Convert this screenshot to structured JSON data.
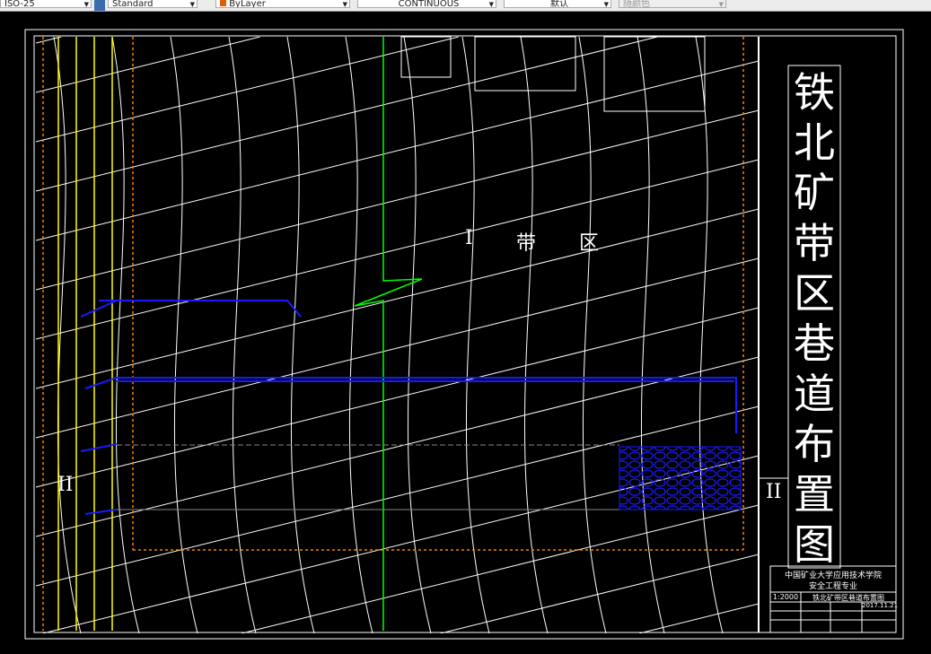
{
  "toolbar": {
    "dimstyle": "ISO-25",
    "textstyle": "Standard",
    "color": "ByLayer",
    "linetype": "CONTINUOUS",
    "lineweight": "默认",
    "plotstyle": "随颜色"
  },
  "drawing": {
    "title_chars": [
      "铁",
      "北",
      "矿",
      "带",
      "区",
      "巷",
      "道",
      "布",
      "置",
      "图"
    ],
    "zone_label": [
      "I",
      "带",
      "区"
    ],
    "section_marker_left": "II",
    "section_marker_right": "II",
    "title_block": {
      "school": "中国矿业大学应用技术学院",
      "major": "安全工程专业",
      "scale": "1:2000",
      "drawing_name": "铁北矿带区巷道布置图",
      "date": "2017.11.21"
    }
  },
  "colors": {
    "roadway": "#1a1aff",
    "boundary": "#ff8000",
    "shaft": "#ffff00",
    "fault": "#00ff00",
    "contour": "#ffffff"
  }
}
